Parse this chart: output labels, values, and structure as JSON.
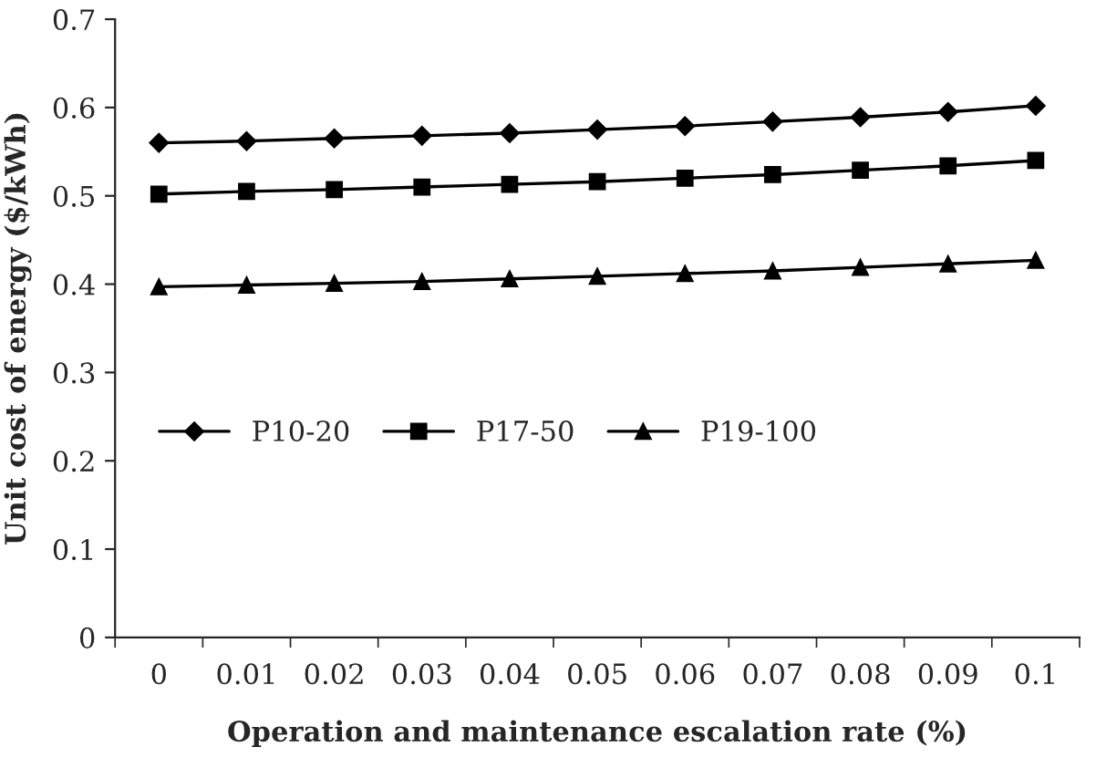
{
  "chart_data": {
    "type": "line",
    "xlabel": "Operation and maintenance escalation rate (%)",
    "ylabel": "Unit cost of energy ($/kWh)",
    "categories": [
      "0",
      "0.01",
      "0.02",
      "0.03",
      "0.04",
      "0.05",
      "0.06",
      "0.07",
      "0.08",
      "0.09",
      "0.1"
    ],
    "series": [
      {
        "name": "P10-20",
        "color": "#000000",
        "marker": "diamond",
        "values": [
          0.56,
          0.562,
          0.565,
          0.568,
          0.571,
          0.575,
          0.579,
          0.584,
          0.589,
          0.595,
          0.602
        ]
      },
      {
        "name": "P17-50",
        "color": "#000000",
        "marker": "square",
        "values": [
          0.502,
          0.505,
          0.507,
          0.51,
          0.513,
          0.516,
          0.52,
          0.524,
          0.529,
          0.534,
          0.54
        ]
      },
      {
        "name": "P19-100",
        "color": "#000000",
        "marker": "triangle",
        "values": [
          0.397,
          0.399,
          0.401,
          0.403,
          0.406,
          0.409,
          0.412,
          0.415,
          0.419,
          0.423,
          0.427
        ]
      }
    ],
    "ylim": [
      0,
      0.7
    ],
    "yticks": [
      0,
      0.1,
      0.2,
      0.3,
      0.4,
      0.5,
      0.6,
      0.7
    ],
    "grid": false,
    "legend": "left",
    "line_style": "solid"
  }
}
